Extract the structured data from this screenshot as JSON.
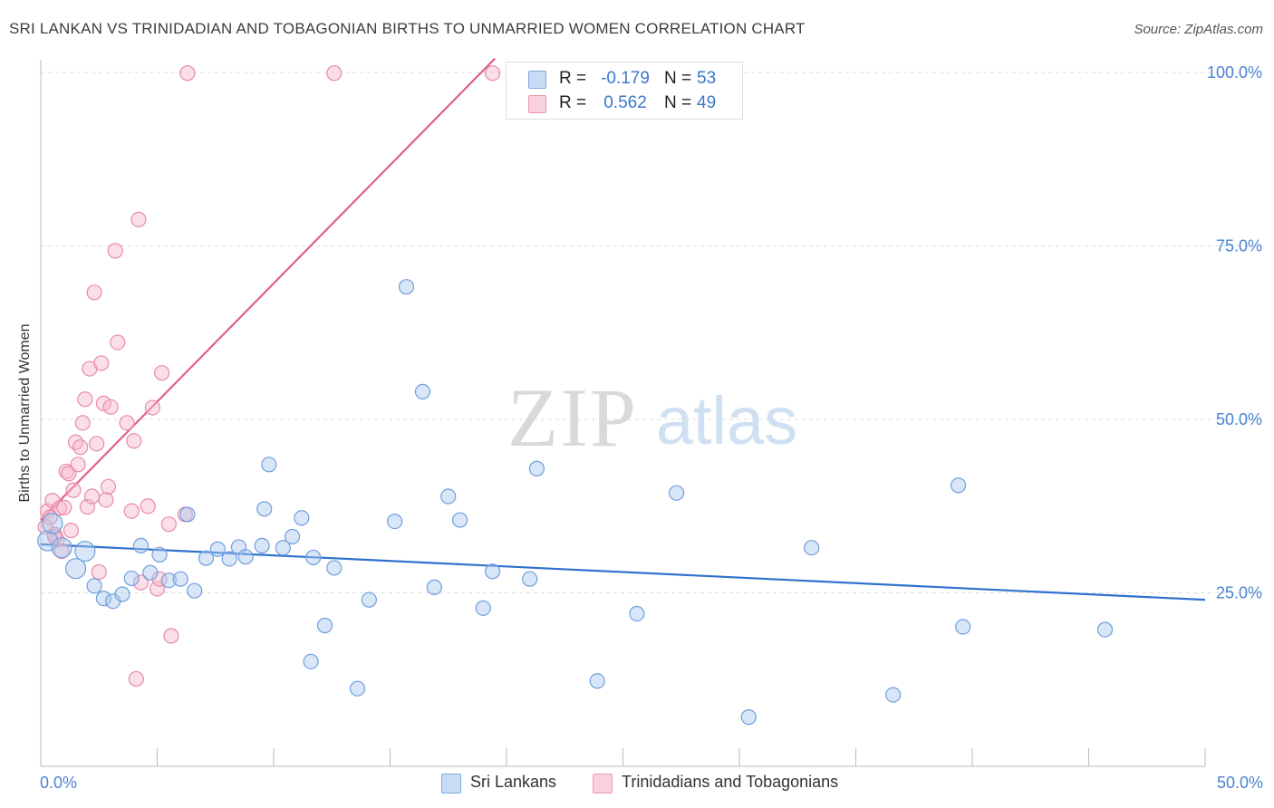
{
  "header": {
    "title": "SRI LANKAN VS TRINIDADIAN AND TOBAGONIAN BIRTHS TO UNMARRIED WOMEN CORRELATION CHART",
    "source": "Source: ZipAtlas.com"
  },
  "watermark": {
    "zip": "ZIP",
    "atlas": "atlas"
  },
  "legend": {
    "r_label": "R =",
    "n_label": "N =",
    "series": [
      {
        "r_value": "-0.179",
        "n_value": "53",
        "color": "#a9c8f0"
      },
      {
        "r_value": "0.562",
        "n_value": "49",
        "color": "#f7b9cc"
      }
    ]
  },
  "bottom_legend": [
    {
      "label": "Sri Lankans",
      "color": "#a9c8f0"
    },
    {
      "label": "Trinidadians and Tobagonians",
      "color": "#f7b9cc"
    }
  ],
  "chart_data": {
    "type": "scatter",
    "title": "SRI LANKAN VS TRINIDADIAN AND TOBAGONIAN BIRTHS TO UNMARRIED WOMEN CORRELATION CHART",
    "xlabel": "",
    "ylabel": "Births to Unmarried Women",
    "xlim": [
      0,
      50
    ],
    "ylim": [
      0,
      105
    ],
    "x_tick_labels": [
      {
        "value": 0,
        "label": "0.0%"
      },
      {
        "value": 50,
        "label": "50.0%"
      }
    ],
    "y_tick_labels": [
      {
        "value": 25,
        "label": "25.0%"
      },
      {
        "value": 50,
        "label": "50.0%"
      },
      {
        "value": 75,
        "label": "75.0%"
      },
      {
        "value": 100,
        "label": "100.0%"
      }
    ],
    "grid": true,
    "series": [
      {
        "name": "Sri Lankans",
        "color": "#a9c8f0",
        "stroke": "#6f9fdc",
        "trend_color": "#2f72cc",
        "trend": {
          "x0": 0.0,
          "y0": 32.0,
          "x1": 50.0,
          "y1": 24.0
        },
        "points": [
          [
            0.3,
            32.5
          ],
          [
            0.5,
            35.0
          ],
          [
            0.9,
            31.5
          ],
          [
            1.5,
            28.5
          ],
          [
            1.9,
            31.0
          ],
          [
            2.3,
            26.0
          ],
          [
            2.7,
            24.2
          ],
          [
            3.1,
            23.8
          ],
          [
            3.5,
            24.8
          ],
          [
            3.9,
            27.1
          ],
          [
            4.3,
            31.8
          ],
          [
            4.7,
            27.9
          ],
          [
            5.1,
            30.5
          ],
          [
            5.5,
            26.8
          ],
          [
            6.0,
            27.0
          ],
          [
            6.3,
            36.3
          ],
          [
            6.6,
            25.3
          ],
          [
            7.1,
            30.0
          ],
          [
            7.6,
            31.3
          ],
          [
            8.1,
            29.9
          ],
          [
            8.5,
            31.6
          ],
          [
            8.8,
            30.2
          ],
          [
            9.5,
            31.8
          ],
          [
            9.6,
            37.1
          ],
          [
            9.8,
            43.5
          ],
          [
            10.4,
            31.5
          ],
          [
            10.8,
            33.1
          ],
          [
            11.2,
            35.8
          ],
          [
            11.7,
            30.1
          ],
          [
            11.6,
            15.1
          ],
          [
            12.2,
            20.3
          ],
          [
            12.6,
            28.6
          ],
          [
            13.6,
            11.2
          ],
          [
            14.1,
            24.0
          ],
          [
            15.2,
            35.3
          ],
          [
            15.7,
            69.1
          ],
          [
            16.4,
            54.0
          ],
          [
            16.9,
            25.8
          ],
          [
            17.5,
            38.9
          ],
          [
            18.0,
            35.5
          ],
          [
            19.0,
            22.8
          ],
          [
            19.4,
            28.1
          ],
          [
            21.0,
            27.0
          ],
          [
            21.3,
            42.9
          ],
          [
            23.9,
            12.3
          ],
          [
            25.6,
            22.0
          ],
          [
            27.3,
            39.4
          ],
          [
            30.4,
            7.1
          ],
          [
            33.1,
            31.5
          ],
          [
            36.6,
            10.3
          ],
          [
            39.4,
            40.5
          ],
          [
            39.6,
            20.1
          ],
          [
            45.7,
            19.7
          ]
        ]
      },
      {
        "name": "Trinidadians and Tobagonians",
        "color": "#f7b9cc",
        "stroke": "#e88aaa",
        "trend_color": "#e0608a",
        "trend": {
          "x0": 0.0,
          "y0": 35.5,
          "x1": 19.5,
          "y1": 102.0
        },
        "points": [
          [
            0.2,
            34.5
          ],
          [
            0.3,
            36.8
          ],
          [
            0.5,
            38.3
          ],
          [
            0.6,
            33.4
          ],
          [
            0.7,
            32.6
          ],
          [
            0.8,
            37.2
          ],
          [
            0.9,
            31.0
          ],
          [
            1.0,
            37.3
          ],
          [
            1.1,
            42.5
          ],
          [
            1.2,
            42.2
          ],
          [
            1.3,
            34.0
          ],
          [
            1.4,
            39.8
          ],
          [
            1.5,
            46.7
          ],
          [
            1.6,
            43.5
          ],
          [
            1.7,
            46.0
          ],
          [
            1.8,
            49.5
          ],
          [
            1.9,
            52.9
          ],
          [
            2.0,
            37.4
          ],
          [
            2.1,
            57.3
          ],
          [
            2.2,
            38.9
          ],
          [
            2.3,
            68.3
          ],
          [
            2.4,
            46.5
          ],
          [
            2.5,
            28.0
          ],
          [
            2.6,
            58.1
          ],
          [
            2.7,
            52.3
          ],
          [
            2.8,
            38.4
          ],
          [
            2.9,
            40.3
          ],
          [
            3.0,
            51.8
          ],
          [
            3.2,
            74.3
          ],
          [
            3.3,
            61.1
          ],
          [
            3.7,
            49.5
          ],
          [
            3.9,
            36.8
          ],
          [
            4.0,
            46.9
          ],
          [
            4.1,
            12.6
          ],
          [
            4.2,
            78.8
          ],
          [
            4.3,
            26.5
          ],
          [
            4.6,
            37.5
          ],
          [
            4.8,
            51.7
          ],
          [
            5.0,
            25.6
          ],
          [
            5.1,
            27.0
          ],
          [
            5.2,
            56.7
          ],
          [
            5.5,
            34.9
          ],
          [
            5.6,
            18.8
          ],
          [
            6.2,
            36.3
          ],
          [
            6.3,
            99.9
          ],
          [
            12.6,
            99.9
          ],
          [
            19.4,
            99.9
          ],
          [
            0.4,
            35.9
          ],
          [
            0.6,
            33.1
          ]
        ]
      }
    ]
  }
}
